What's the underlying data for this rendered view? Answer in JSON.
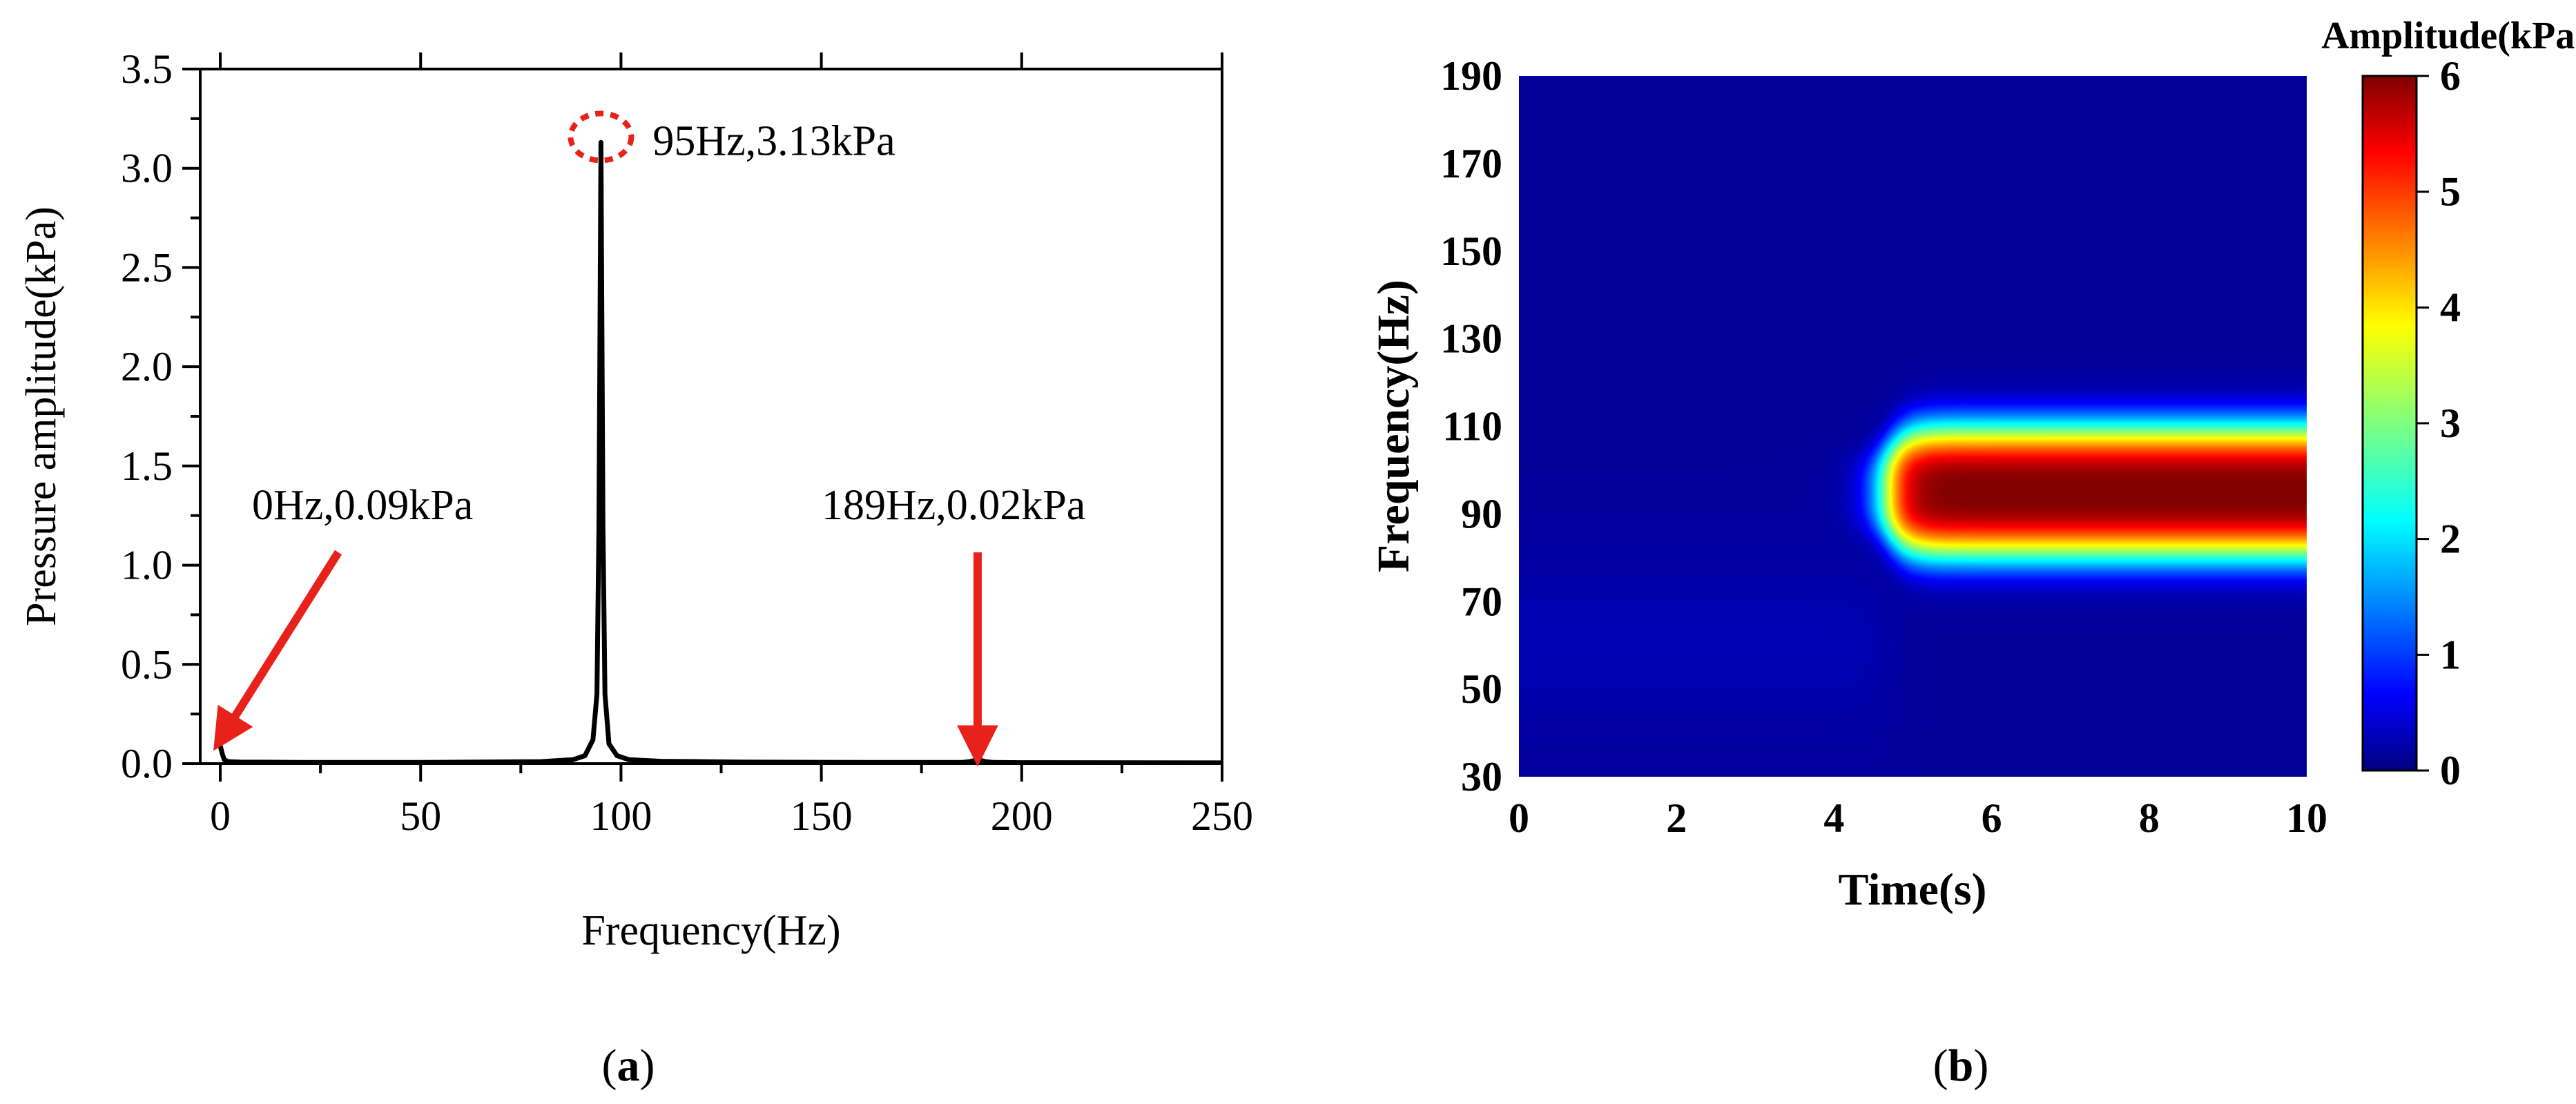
{
  "chart_data": [
    {
      "type": "line",
      "panel_label": "a",
      "xlabel": "Frequency(Hz)",
      "ylabel": "Pressure amplitude(kPa)",
      "xlim": [
        -5,
        250
      ],
      "ylim": [
        0,
        3.5
      ],
      "xticks": [
        0,
        50,
        100,
        150,
        200,
        250
      ],
      "yticks": [
        0.0,
        0.5,
        1.0,
        1.5,
        2.0,
        2.5,
        3.0,
        3.5
      ],
      "ytick_labels": [
        "0.0",
        "0.5",
        "1.0",
        "1.5",
        "2.0",
        "2.5",
        "3.0",
        "3.5"
      ],
      "line_color": "#000000",
      "series": [
        {
          "x": [
            0,
            0.5,
            1,
            2,
            5,
            20,
            50,
            80,
            88,
            91,
            93,
            94,
            94.5,
            95,
            95.5,
            96,
            97,
            99,
            102,
            110,
            130,
            160,
            185,
            187,
            188,
            189,
            190,
            191,
            193,
            200,
            250
          ],
          "values": [
            0.09,
            0.05,
            0.02,
            0.01,
            0.008,
            0.006,
            0.006,
            0.01,
            0.02,
            0.04,
            0.12,
            0.35,
            1.2,
            3.13,
            1.2,
            0.35,
            0.1,
            0.04,
            0.02,
            0.012,
            0.008,
            0.006,
            0.006,
            0.01,
            0.015,
            0.02,
            0.015,
            0.01,
            0.006,
            0.005,
            0.004
          ]
        }
      ],
      "annotations": [
        {
          "text": "95Hz,3.13kPa",
          "x": 95,
          "y": 3.13,
          "marker": "dashed-ellipse",
          "color": "#e8211b"
        },
        {
          "text": "0Hz,0.09kPa",
          "x": 0,
          "y": 0.09,
          "marker": "arrow",
          "color": "#e8211b"
        },
        {
          "text": "189Hz,0.02kPa",
          "x": 189,
          "y": 0.02,
          "marker": "arrow",
          "color": "#e8211b"
        }
      ]
    },
    {
      "type": "heatmap",
      "panel_label": "b",
      "xlabel": "Time(s)",
      "ylabel": "Frequency(Hz)",
      "xlim": [
        0,
        10
      ],
      "ylim": [
        30,
        190
      ],
      "xticks": [
        0,
        2,
        4,
        6,
        8,
        10
      ],
      "yticks": [
        30,
        50,
        70,
        90,
        110,
        130,
        150,
        170,
        190
      ],
      "colorbar_title": "Amplitude(kPa)",
      "colorbar_range": [
        0,
        6
      ],
      "colorbar_ticks": [
        0,
        1,
        2,
        3,
        4,
        5,
        6
      ],
      "colormap": "jet",
      "description_of_field": {
        "band_center_hz": 95,
        "band_half_width_hz": 16,
        "onset_time_s": 4.4,
        "onset_ramp_s": 0.6,
        "peak_amplitude": 6,
        "background_amplitude": 0.15
      }
    }
  ]
}
